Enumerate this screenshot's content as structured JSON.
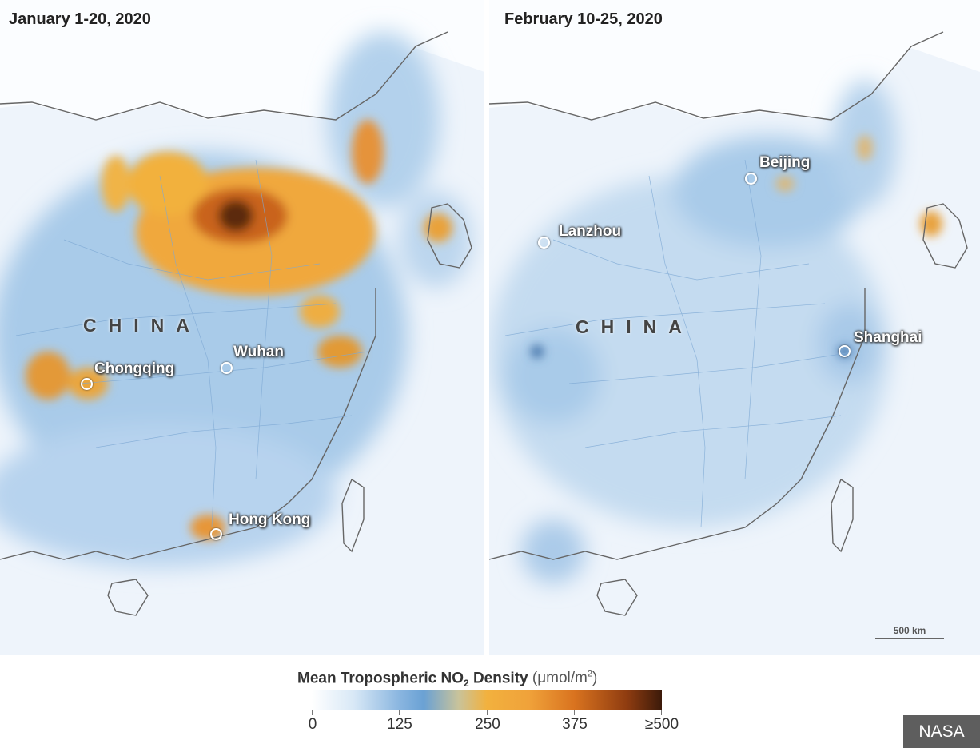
{
  "panels": {
    "left": {
      "title": "January 1-20, 2020",
      "country": "CHINA",
      "cities": [
        "Chongqing",
        "Wuhan",
        "Hong Kong"
      ]
    },
    "right": {
      "title": "February 10-25, 2020",
      "country": "CHINA",
      "cities": [
        "Beijing",
        "Lanzhou",
        "Shanghai"
      ],
      "scale_bar": "500 km"
    }
  },
  "legend": {
    "title_main": "Mean Tropospheric NO",
    "title_sub": "2",
    "title_rest": " Density",
    "unit": "(μmol/m",
    "unit_sup": "2",
    "unit_close": ")",
    "ticks": [
      "0",
      "125",
      "250",
      "375",
      "≥500"
    ],
    "colors": [
      "#ffffff",
      "#8ab6e0",
      "#f2b13e",
      "#d9731f",
      "#3c1a0a"
    ]
  },
  "credit": "NASA"
}
